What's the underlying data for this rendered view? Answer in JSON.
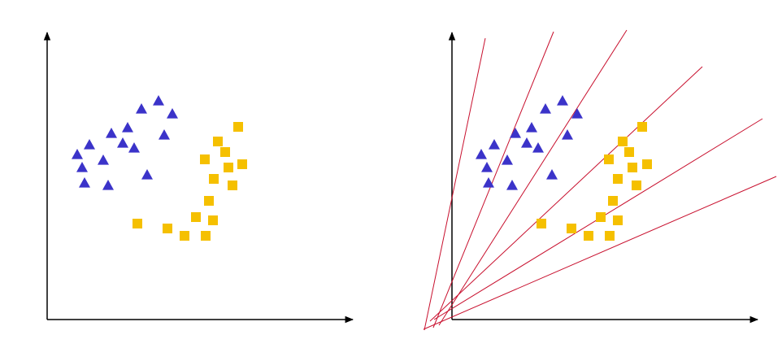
{
  "colors": {
    "background": "#ffffff",
    "axis": "#000000",
    "triangle": "#3b33c9",
    "square": "#f5c000",
    "separator_line": "#c8102e"
  },
  "panels": [
    {
      "name": "left-panel",
      "triangles": [
        [
          195,
          124
        ],
        [
          174,
          134
        ],
        [
          212,
          140
        ],
        [
          157,
          157
        ],
        [
          137,
          164
        ],
        [
          202,
          166
        ],
        [
          110,
          178
        ],
        [
          151,
          176
        ],
        [
          165,
          182
        ],
        [
          95,
          190
        ],
        [
          127,
          197
        ],
        [
          101,
          206
        ],
        [
          181,
          215
        ],
        [
          104,
          225
        ],
        [
          133,
          228
        ]
      ],
      "squares": [
        [
          293,
          156
        ],
        [
          268,
          174
        ],
        [
          277,
          187
        ],
        [
          252,
          196
        ],
        [
          298,
          202
        ],
        [
          281,
          206
        ],
        [
          263,
          220
        ],
        [
          286,
          228
        ],
        [
          257,
          247
        ],
        [
          241,
          267
        ],
        [
          262,
          271
        ],
        [
          169,
          275
        ],
        [
          206,
          281
        ],
        [
          227,
          290
        ],
        [
          253,
          290
        ]
      ],
      "lines": []
    },
    {
      "name": "right-panel",
      "triangles": [
        [
          692,
          124
        ],
        [
          671,
          134
        ],
        [
          710,
          140
        ],
        [
          654,
          157
        ],
        [
          634,
          164
        ],
        [
          698,
          166
        ],
        [
          608,
          178
        ],
        [
          648,
          176
        ],
        [
          662,
          182
        ],
        [
          592,
          190
        ],
        [
          624,
          197
        ],
        [
          599,
          206
        ],
        [
          679,
          215
        ],
        [
          601,
          225
        ],
        [
          630,
          228
        ]
      ],
      "squares": [
        [
          790,
          156
        ],
        [
          766,
          174
        ],
        [
          774,
          187
        ],
        [
          749,
          196
        ],
        [
          796,
          202
        ],
        [
          778,
          206
        ],
        [
          760,
          220
        ],
        [
          783,
          228
        ],
        [
          754,
          247
        ],
        [
          739,
          267
        ],
        [
          760,
          271
        ],
        [
          666,
          275
        ],
        [
          703,
          281
        ],
        [
          724,
          290
        ],
        [
          750,
          290
        ]
      ],
      "lines": [
        [
          [
            522,
            406
          ],
          [
            597,
            47
          ]
        ],
        [
          [
            533,
            403
          ],
          [
            681,
            39
          ]
        ],
        [
          [
            540,
            400
          ],
          [
            771,
            37
          ]
        ],
        [
          [
            529,
            395
          ],
          [
            864,
            82
          ]
        ],
        [
          [
            534,
            393
          ],
          [
            938,
            146
          ]
        ],
        [
          [
            521,
            405
          ],
          [
            955,
            217
          ]
        ]
      ]
    }
  ]
}
